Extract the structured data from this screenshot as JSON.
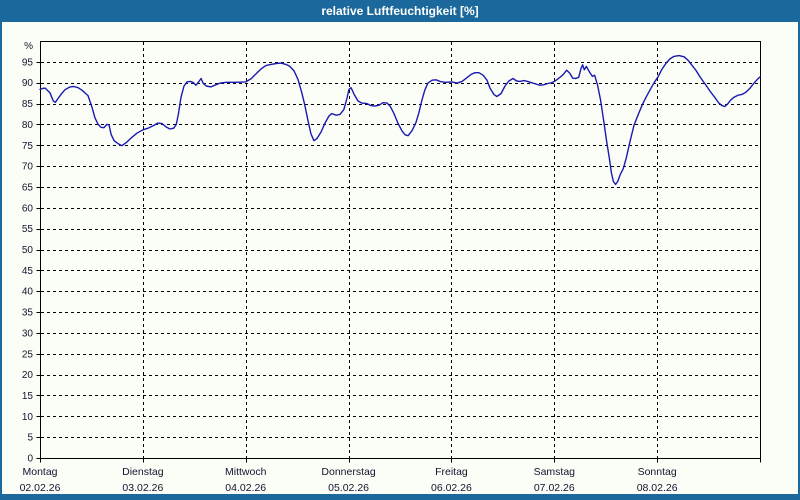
{
  "window": {
    "title": "relative Luftfeuchtigkeit [%]"
  },
  "colors": {
    "titlebar_bg": "#1b689c",
    "titlebar_text": "#ffffff",
    "frame_border": "#1b689c",
    "plot_bg": "#fbfdf7",
    "grid": "#000000",
    "axis_frame": "#000000",
    "axis_text": "#14142e",
    "line": "#1a1ab0"
  },
  "chart_data": {
    "type": "line",
    "title": "relative Luftfeuchtigkeit [%]",
    "ylabel": "%",
    "ylim": [
      0,
      100
    ],
    "ytick_step": 5,
    "ytick_labels": [
      "0",
      "5",
      "10",
      "15",
      "20",
      "25",
      "30",
      "35",
      "40",
      "45",
      "50",
      "55",
      "60",
      "65",
      "70",
      "75",
      "80",
      "85",
      "90",
      "95"
    ],
    "grid": "dashed",
    "legend": "none",
    "x_unit": "hours",
    "xlim": [
      0,
      168
    ],
    "x_days": [
      {
        "name": "Montag",
        "date": "02.02.26"
      },
      {
        "name": "Dienstag",
        "date": "03.02.26"
      },
      {
        "name": "Mittwoch",
        "date": "04.02.26"
      },
      {
        "name": "Donnerstag",
        "date": "05.02.26"
      },
      {
        "name": "Freitag",
        "date": "06.02.26"
      },
      {
        "name": "Samstag",
        "date": "07.02.26"
      },
      {
        "name": "Sonntag",
        "date": "08.02.26"
      }
    ],
    "series": [
      {
        "name": "relative Luftfeuchtigkeit",
        "color": "#1a1ab0",
        "points": [
          [
            0,
            88.4
          ],
          [
            0.6,
            88.6
          ],
          [
            1.2,
            88.7
          ],
          [
            2.3,
            87.6
          ],
          [
            3.1,
            85.6
          ],
          [
            3.6,
            85.3
          ],
          [
            4.2,
            86.2
          ],
          [
            4.9,
            87.2
          ],
          [
            5.8,
            88.3
          ],
          [
            7,
            89
          ],
          [
            7.9,
            89.1
          ],
          [
            8.9,
            88.8
          ],
          [
            9.8,
            88.2
          ],
          [
            11.2,
            86.9
          ],
          [
            12.1,
            84.2
          ],
          [
            12.8,
            81.6
          ],
          [
            13.5,
            80.1
          ],
          [
            14.2,
            79.3
          ],
          [
            14.9,
            79.2
          ],
          [
            15.6,
            80
          ],
          [
            16.1,
            79.9
          ],
          [
            16.6,
            77.6
          ],
          [
            17.3,
            76.1
          ],
          [
            18.2,
            75.4
          ],
          [
            19.1,
            74.9
          ],
          [
            20.1,
            75.6
          ],
          [
            21.2,
            76.7
          ],
          [
            22.6,
            77.9
          ],
          [
            24,
            78.7
          ],
          [
            25.2,
            79.1
          ],
          [
            26.4,
            79.7
          ],
          [
            27.5,
            80.3
          ],
          [
            28.5,
            80.2
          ],
          [
            29.4,
            79.4
          ],
          [
            30.3,
            78.9
          ],
          [
            31.2,
            79.1
          ],
          [
            31.8,
            80
          ],
          [
            32.3,
            82.5
          ],
          [
            32.9,
            86.5
          ],
          [
            33.6,
            89.2
          ],
          [
            34.3,
            90.2
          ],
          [
            35,
            90.3
          ],
          [
            35.7,
            90.1
          ],
          [
            36.4,
            89.4
          ],
          [
            37.1,
            90.3
          ],
          [
            37.6,
            91
          ],
          [
            38.1,
            89.8
          ],
          [
            38.8,
            89.2
          ],
          [
            39.9,
            89
          ],
          [
            40.8,
            89.4
          ],
          [
            42,
            89.9
          ],
          [
            43.5,
            90.1
          ],
          [
            45.5,
            90.1
          ],
          [
            48,
            90.2
          ],
          [
            49.2,
            90.9
          ],
          [
            50.4,
            92.1
          ],
          [
            51.6,
            93.3
          ],
          [
            52.7,
            94.1
          ],
          [
            53.9,
            94.4
          ],
          [
            55.1,
            94.6
          ],
          [
            56.2,
            94.7
          ],
          [
            57.4,
            94.4
          ],
          [
            58.3,
            93.9
          ],
          [
            59.3,
            92.8
          ],
          [
            60.2,
            90.8
          ],
          [
            61.1,
            87.5
          ],
          [
            61.8,
            84.5
          ],
          [
            62.5,
            81
          ],
          [
            63.2,
            77.8
          ],
          [
            63.9,
            76.1
          ],
          [
            64.6,
            76.6
          ],
          [
            65.6,
            78.2
          ],
          [
            66.5,
            80.3
          ],
          [
            67.4,
            82
          ],
          [
            68.1,
            82.6
          ],
          [
            69.1,
            82.2
          ],
          [
            70,
            82.4
          ],
          [
            70.9,
            83.6
          ],
          [
            71.6,
            86.2
          ],
          [
            72.1,
            88.4
          ],
          [
            72.6,
            88.8
          ],
          [
            73.3,
            87.2
          ],
          [
            74.2,
            85.6
          ],
          [
            75.1,
            85.1
          ],
          [
            76.3,
            85
          ],
          [
            77.2,
            84.5
          ],
          [
            78.2,
            84.4
          ],
          [
            79.1,
            84.6
          ],
          [
            80,
            85.2
          ],
          [
            81,
            85.1
          ],
          [
            81.7,
            84.4
          ],
          [
            82.6,
            82.6
          ],
          [
            83.5,
            80.3
          ],
          [
            84.5,
            78.4
          ],
          [
            85.2,
            77.5
          ],
          [
            85.9,
            77.3
          ],
          [
            86.8,
            78.5
          ],
          [
            87.7,
            80.4
          ],
          [
            88.4,
            82.8
          ],
          [
            89.1,
            85.8
          ],
          [
            89.8,
            88.3
          ],
          [
            90.5,
            89.9
          ],
          [
            91.5,
            90.6
          ],
          [
            92.4,
            90.7
          ],
          [
            93.3,
            90.3
          ],
          [
            94.5,
            90.1
          ],
          [
            96.1,
            90.2
          ],
          [
            97.3,
            89.9
          ],
          [
            98.5,
            90.3
          ],
          [
            99.6,
            91.2
          ],
          [
            100.6,
            92
          ],
          [
            101.5,
            92.4
          ],
          [
            102.4,
            92.4
          ],
          [
            103.4,
            91.8
          ],
          [
            104.3,
            90.6
          ],
          [
            105,
            88.7
          ],
          [
            105.9,
            87.2
          ],
          [
            106.6,
            86.7
          ],
          [
            107.6,
            87.4
          ],
          [
            108.5,
            89.2
          ],
          [
            109.4,
            90.4
          ],
          [
            110.4,
            91
          ],
          [
            111.2,
            90.4
          ],
          [
            112,
            90.3
          ],
          [
            112.9,
            90.5
          ],
          [
            113.8,
            90.3
          ],
          [
            114.7,
            90
          ],
          [
            115.7,
            89.7
          ],
          [
            116.6,
            89.4
          ],
          [
            117.5,
            89.5
          ],
          [
            118.5,
            89.8
          ],
          [
            119.4,
            90
          ],
          [
            120.2,
            90.4
          ],
          [
            121.1,
            91.1
          ],
          [
            122,
            91.9
          ],
          [
            122.9,
            93
          ],
          [
            123.6,
            92.3
          ],
          [
            124.3,
            91.1
          ],
          [
            125,
            91
          ],
          [
            125.7,
            91.3
          ],
          [
            126.2,
            93.3
          ],
          [
            126.6,
            94.3
          ],
          [
            127,
            93.1
          ],
          [
            127.5,
            93.9
          ],
          [
            128.2,
            92.6
          ],
          [
            128.9,
            91.5
          ],
          [
            129.4,
            91.8
          ],
          [
            130.1,
            89.4
          ],
          [
            130.8,
            85.8
          ],
          [
            131.5,
            81
          ],
          [
            132.2,
            76
          ],
          [
            132.9,
            71.5
          ],
          [
            133.3,
            68.5
          ],
          [
            133.8,
            66.3
          ],
          [
            134.3,
            65.6
          ],
          [
            134.8,
            66.3
          ],
          [
            135.4,
            68
          ],
          [
            136.1,
            69.4
          ],
          [
            136.8,
            72
          ],
          [
            137.7,
            76
          ],
          [
            138.6,
            79.8
          ],
          [
            139.6,
            82.4
          ],
          [
            140.5,
            84.6
          ],
          [
            141.4,
            86.5
          ],
          [
            142.4,
            88.4
          ],
          [
            143.3,
            90
          ],
          [
            144.2,
            91.4
          ],
          [
            145.1,
            93.2
          ],
          [
            146.1,
            94.7
          ],
          [
            147,
            95.7
          ],
          [
            147.9,
            96.3
          ],
          [
            149.1,
            96.5
          ],
          [
            150.3,
            96.2
          ],
          [
            151.2,
            95.4
          ],
          [
            152.1,
            94.2
          ],
          [
            153.1,
            92.9
          ],
          [
            154,
            91.4
          ],
          [
            155.2,
            89.7
          ],
          [
            156.3,
            88
          ],
          [
            157.5,
            86.4
          ],
          [
            158.4,
            85.1
          ],
          [
            159.1,
            84.5
          ],
          [
            159.8,
            84.3
          ],
          [
            160.5,
            85
          ],
          [
            161.2,
            85.9
          ],
          [
            161.9,
            86.5
          ],
          [
            162.9,
            87
          ],
          [
            163.8,
            87.2
          ],
          [
            164.7,
            87.7
          ],
          [
            165.7,
            88.7
          ],
          [
            166.6,
            89.9
          ],
          [
            167.3,
            90.7
          ],
          [
            168,
            91.4
          ]
        ]
      }
    ]
  }
}
